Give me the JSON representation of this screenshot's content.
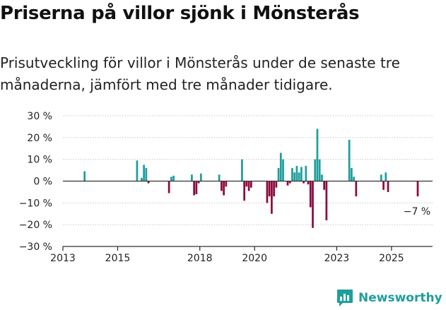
{
  "title": "Priserna på villor sjönk i Mönsterås",
  "subtitle": "Prisutveckling för villor i Mönsterås under de senaste tre månaderna, jämfört med tre månader tidigare.",
  "brand": {
    "name": "Newsworthy"
  },
  "colors": {
    "positive": "#1f9e9e",
    "negative": "#8c0a3c",
    "axis": "#333333",
    "grid": "#c8c8c8",
    "brand": "#1f9e9e"
  },
  "chart_data": {
    "type": "bar",
    "yunit": "%",
    "ylim": [
      -30,
      30
    ],
    "yticks": [
      {
        "value": 30,
        "label": "30 %"
      },
      {
        "value": 20,
        "label": "20 %"
      },
      {
        "value": 10,
        "label": "10 %"
      },
      {
        "value": 0,
        "label": "0 %"
      },
      {
        "value": -10,
        "label": "−10 %"
      },
      {
        "value": -20,
        "label": "−20 %"
      },
      {
        "value": -30,
        "label": "−30 %"
      }
    ],
    "xlim": [
      "2013-01",
      "2026-07"
    ],
    "xticks": [
      "2013",
      "2015",
      "2018",
      "2020",
      "2023",
      "2025"
    ],
    "grid": true,
    "annotation": {
      "text": "−7 %",
      "target": "2025-12"
    },
    "series": [
      {
        "x": [
          "2013-10",
          "2015-09",
          "2015-11",
          "2015-12",
          "2016-01",
          "2016-02",
          "2016-11",
          "2016-12",
          "2017-01",
          "2017-09",
          "2017-10",
          "2017-11",
          "2017-12",
          "2018-01",
          "2018-09",
          "2018-10",
          "2018-11",
          "2018-12",
          "2019-07",
          "2019-08",
          "2019-09",
          "2019-10",
          "2019-11",
          "2020-06",
          "2020-07",
          "2020-08",
          "2020-09",
          "2020-10",
          "2020-11",
          "2020-12",
          "2021-01",
          "2021-03",
          "2021-04",
          "2021-05",
          "2021-06",
          "2021-07",
          "2021-08",
          "2021-09",
          "2021-10",
          "2021-11",
          "2021-12",
          "2022-01",
          "2022-02",
          "2022-03",
          "2022-04",
          "2022-05",
          "2022-06",
          "2022-07",
          "2022-08",
          "2023-06",
          "2023-07",
          "2023-08",
          "2023-09",
          "2024-08",
          "2024-09",
          "2024-10",
          "2024-11",
          "2025-12"
        ],
        "values": [
          4.5,
          9.5,
          1.5,
          7.5,
          6,
          -1,
          -5.5,
          2,
          2.5,
          3,
          -6.5,
          -6,
          -1,
          3.5,
          3,
          -4.5,
          -6.5,
          -2.5,
          10,
          -9,
          -2.5,
          -4.5,
          -3,
          -10,
          -7,
          -15,
          -7,
          -3,
          6,
          13,
          10,
          -2,
          -1,
          6,
          4,
          7,
          4,
          6.5,
          -1,
          7,
          -1.5,
          -12,
          -21.5,
          10,
          24,
          10,
          3,
          -4,
          -18,
          19,
          6,
          2,
          -7,
          3,
          -4,
          4,
          -5,
          -7
        ]
      }
    ]
  }
}
